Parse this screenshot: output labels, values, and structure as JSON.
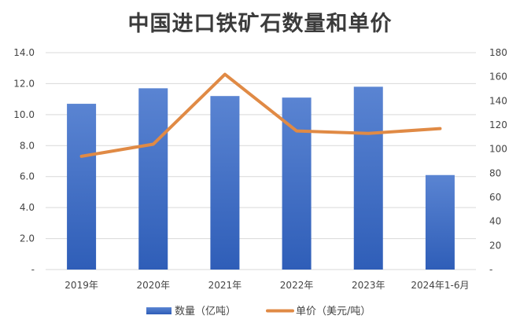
{
  "chart_data": {
    "type": "bar",
    "title": "中国进口铁矿石数量和单价",
    "categories": [
      "2019年",
      "2020年",
      "2021年",
      "2022年",
      "2023年",
      "2024年1-6月"
    ],
    "series": [
      {
        "name": "数量（亿吨）",
        "type": "bar",
        "axis": "left",
        "color": "#3f6fc4",
        "values": [
          10.7,
          11.7,
          11.2,
          11.1,
          11.8,
          6.1
        ]
      },
      {
        "name": "单价（美元/吨）",
        "type": "line",
        "axis": "right",
        "color": "#e08a45",
        "values": [
          94,
          104,
          162,
          115,
          113,
          117
        ]
      }
    ],
    "y_left": {
      "ylim": [
        0,
        14
      ],
      "ticks": [
        "-",
        "2.0",
        "4.0",
        "6.0",
        "8.0",
        "10.0",
        "12.0",
        "14.0"
      ]
    },
    "y_right": {
      "ylim": [
        0,
        180
      ],
      "ticks": [
        "-",
        "20",
        "40",
        "60",
        "80",
        "100",
        "120",
        "140",
        "160",
        "180"
      ]
    },
    "grid": true,
    "legend": "bottom"
  }
}
